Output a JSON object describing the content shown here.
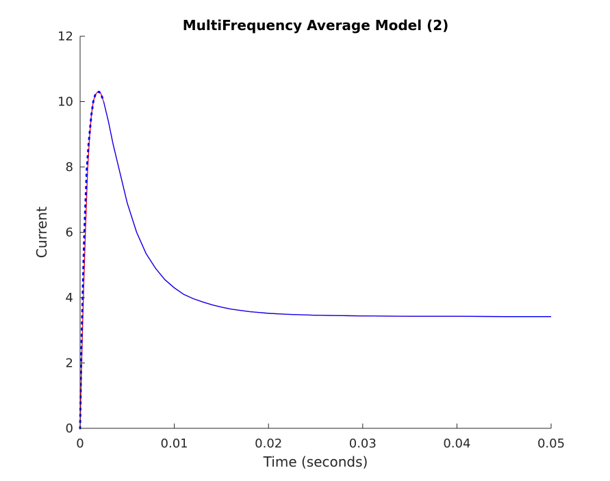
{
  "chart_data": {
    "type": "line",
    "title": "MultiFrequency Average Model (2)",
    "xlabel": "Time (seconds)",
    "ylabel": "Current",
    "xlim": [
      0,
      0.05
    ],
    "ylim": [
      0,
      12
    ],
    "x_ticks": [
      0,
      0.01,
      0.02,
      0.03,
      0.04,
      0.05
    ],
    "x_tick_labels": [
      "0",
      "0.01",
      "0.02",
      "0.03",
      "0.04",
      "0.05"
    ],
    "y_ticks": [
      0,
      2,
      4,
      6,
      8,
      10,
      12
    ],
    "y_tick_labels": [
      "0",
      "2",
      "4",
      "6",
      "8",
      "10",
      "12"
    ],
    "grid": false,
    "series": [
      {
        "color": "#ff0000",
        "style": "solid",
        "x": [
          0,
          0.0002,
          0.0004,
          0.0006,
          0.0008,
          0.001,
          0.0012,
          0.0014,
          0.0016,
          0.0018,
          0.002,
          0.0022,
          0.0025,
          0.003,
          0.0035,
          0.004,
          0.005,
          0.006,
          0.007,
          0.008,
          0.009,
          0.01,
          0.011,
          0.012,
          0.013,
          0.014,
          0.015,
          0.016,
          0.018,
          0.02,
          0.022,
          0.025,
          0.03,
          0.035,
          0.04,
          0.045,
          0.05
        ],
        "y": [
          0,
          2.4,
          4.5,
          6.3,
          7.9,
          8.9,
          9.6,
          10.0,
          10.2,
          10.28,
          10.3,
          10.25,
          10.0,
          9.4,
          8.7,
          8.1,
          6.9,
          6.0,
          5.35,
          4.9,
          4.55,
          4.3,
          4.1,
          3.97,
          3.87,
          3.78,
          3.71,
          3.65,
          3.57,
          3.52,
          3.49,
          3.46,
          3.44,
          3.43,
          3.43,
          3.42,
          3.42
        ]
      },
      {
        "color": "#0000ff",
        "style": "dotted-then-solid",
        "x": [
          0,
          0.0001,
          0.0002,
          0.0003,
          0.0004,
          0.0005,
          0.0006,
          0.0007,
          0.0008,
          0.0009,
          0.001,
          0.0012,
          0.0014,
          0.0016,
          0.0018,
          0.002,
          0.0022,
          0.0025,
          0.003,
          0.0035,
          0.004,
          0.005,
          0.006,
          0.007,
          0.008,
          0.009,
          0.01,
          0.011,
          0.012,
          0.013,
          0.014,
          0.015,
          0.016,
          0.018,
          0.02,
          0.022,
          0.025,
          0.03,
          0.035,
          0.04,
          0.045,
          0.05
        ],
        "y": [
          0,
          1.8,
          3.2,
          4.4,
          5.5,
          6.4,
          7.1,
          7.9,
          8.3,
          8.7,
          9.0,
          9.6,
          10.0,
          10.2,
          10.28,
          10.3,
          10.25,
          10.0,
          9.4,
          8.7,
          8.1,
          6.9,
          6.0,
          5.35,
          4.9,
          4.55,
          4.3,
          4.1,
          3.97,
          3.87,
          3.78,
          3.71,
          3.65,
          3.57,
          3.52,
          3.49,
          3.46,
          3.44,
          3.43,
          3.43,
          3.42,
          3.42
        ]
      }
    ]
  }
}
